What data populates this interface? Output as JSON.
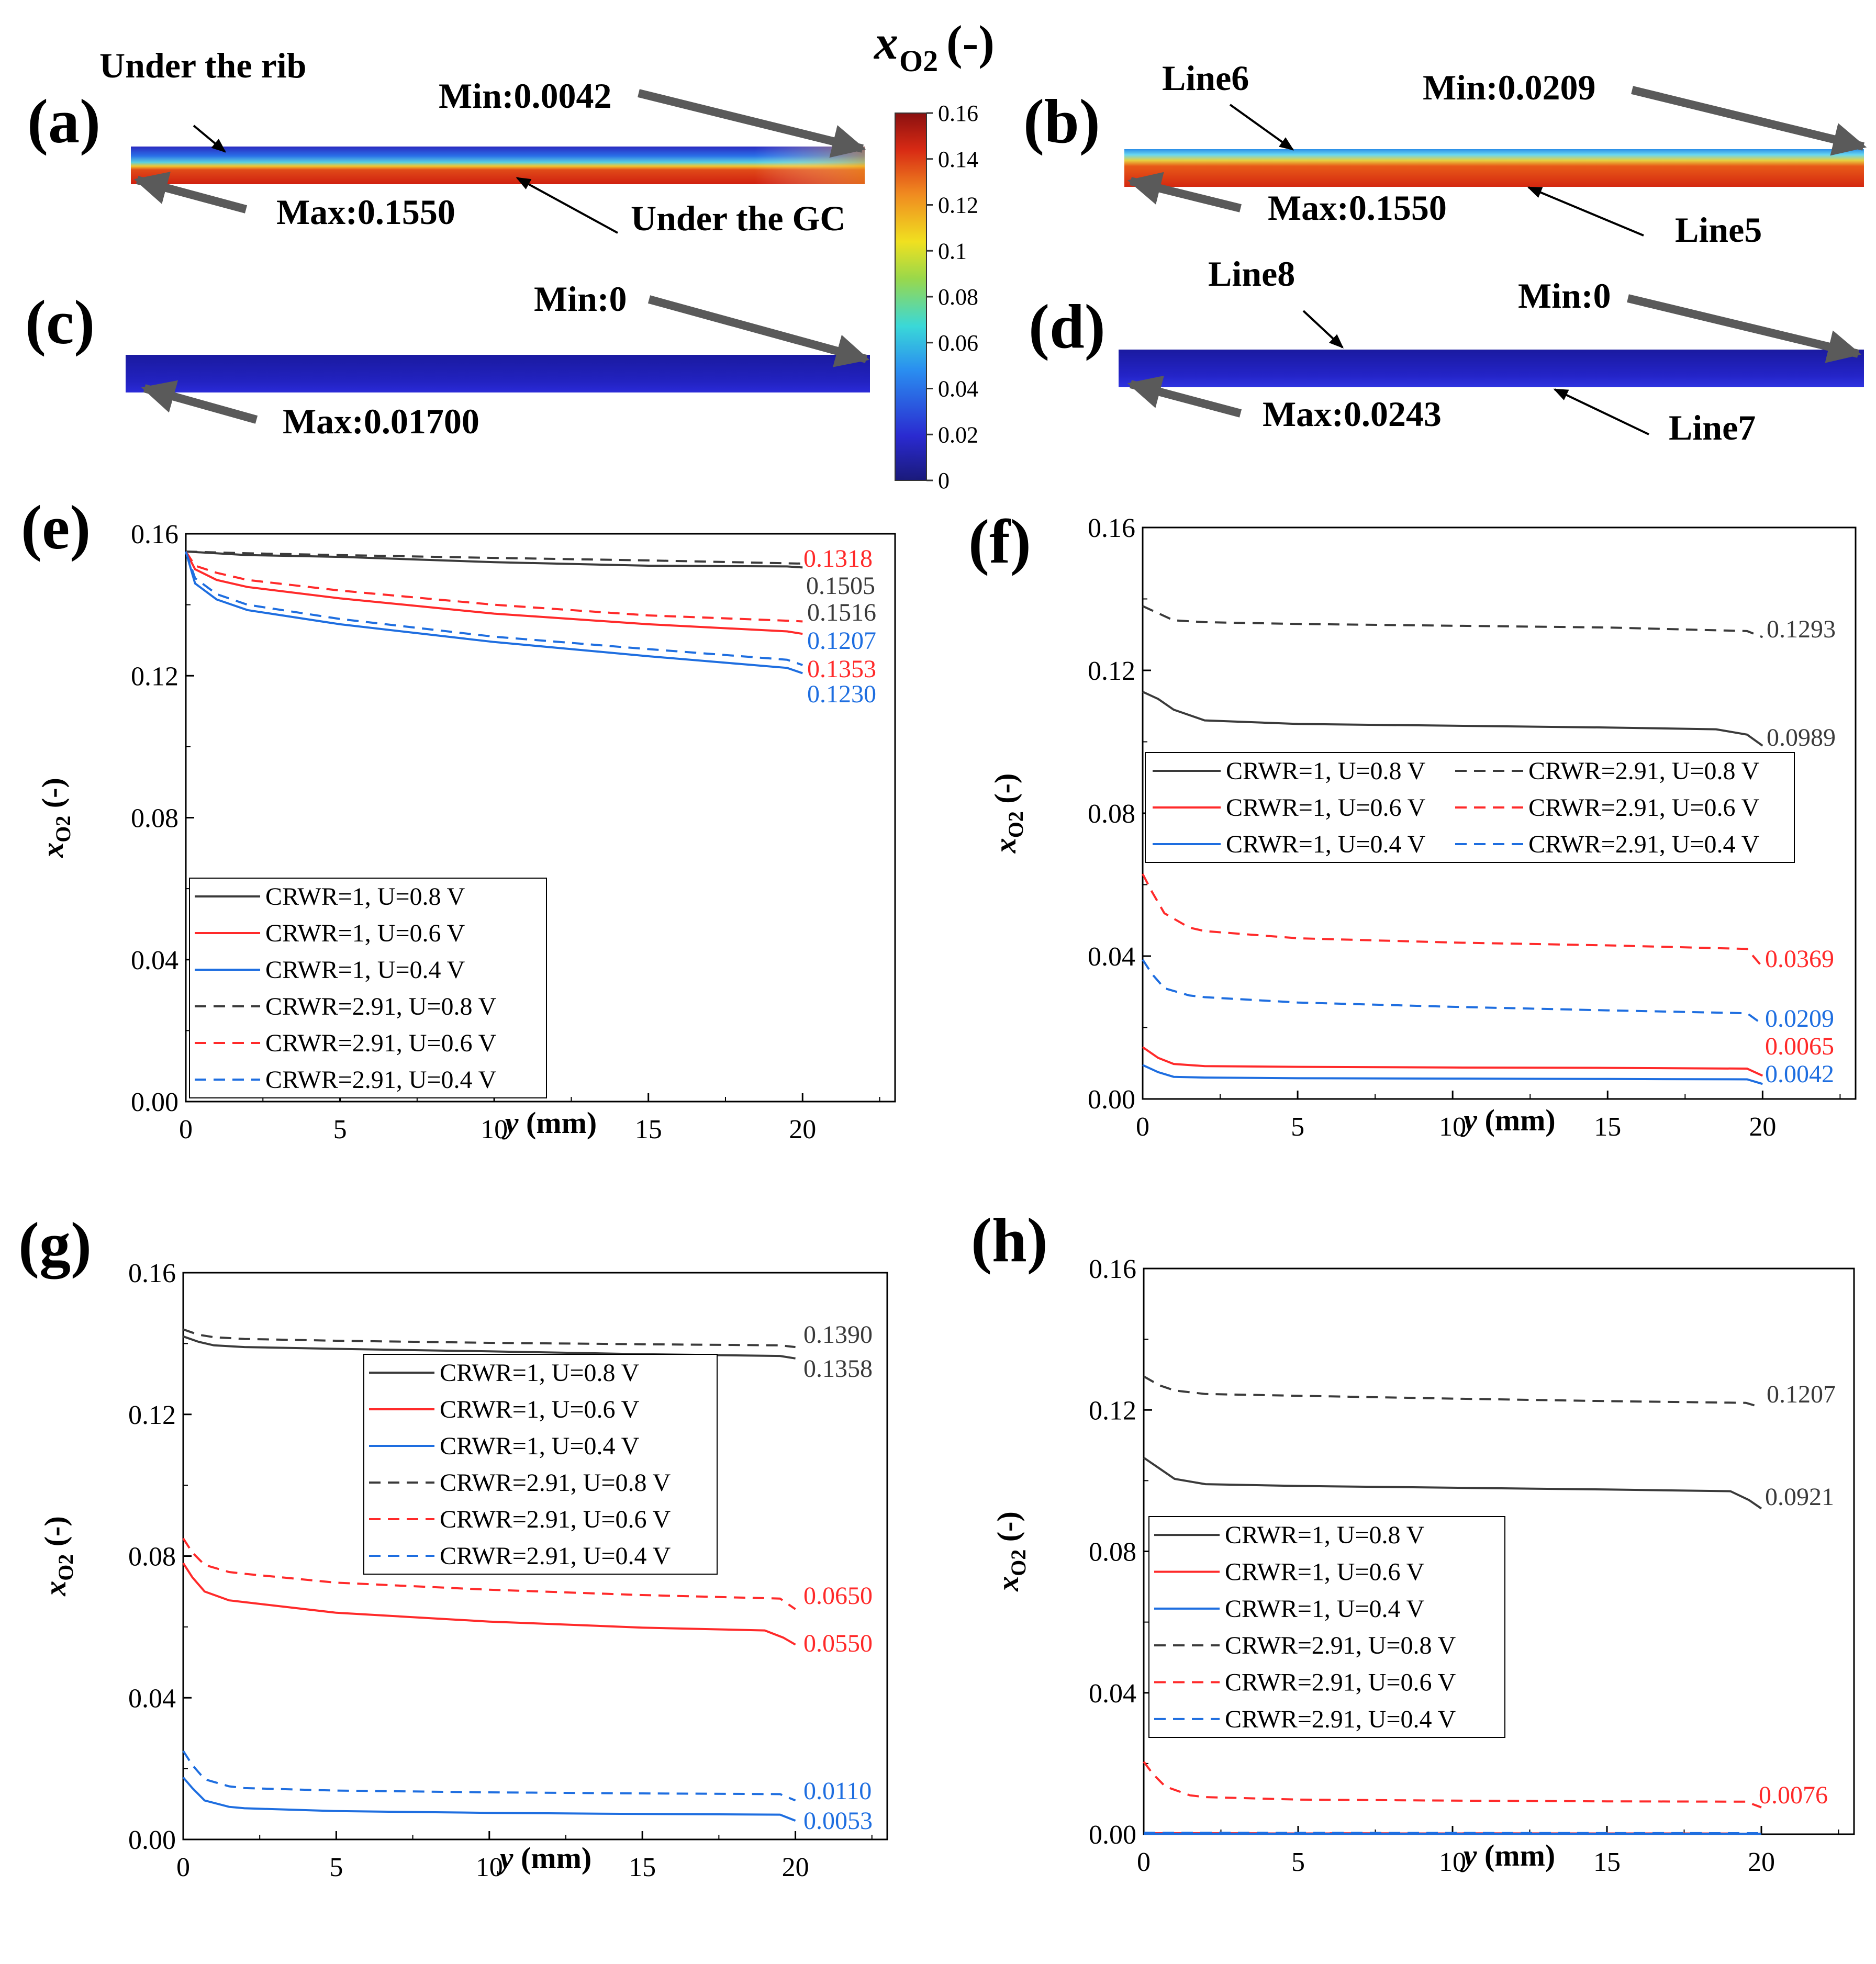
{
  "colorbar": {
    "title_main": "x",
    "title_sub": "O2",
    "title_suffix": "(-)",
    "ticks": [
      "0.16",
      "0.14",
      "0.12",
      "0.1",
      "0.08",
      "0.06",
      "0.04",
      "0.02",
      "0"
    ]
  },
  "contours": [
    {
      "id": "a",
      "label": "(a)",
      "texts": [
        "Under the rib",
        "Min:0.0042",
        "Max:0.1550",
        "Under the GC"
      ]
    },
    {
      "id": "b",
      "label": "(b)",
      "texts": [
        "Line6",
        "Min:0.0209",
        "Max:0.1550",
        "Line5"
      ]
    },
    {
      "id": "c",
      "label": "(c)",
      "texts": [
        "Min:0",
        "Max:0.01700"
      ]
    },
    {
      "id": "d",
      "label": "(d)",
      "texts": [
        "Line8",
        "Min:0",
        "Max:0.0243",
        "Line7"
      ]
    }
  ],
  "colors": {
    "black": "#3a3a3a",
    "red": "#ff2a2a",
    "blue": "#1e6ee0"
  },
  "chart_data": [
    {
      "panel": "(e)",
      "type": "line",
      "xlabel_var": "y",
      "xlabel_unit": " (mm)",
      "ylabel_var": "x",
      "ylabel_sub": "O2",
      "ylabel_unit": " (-)",
      "xlim": [
        0,
        23
      ],
      "ylim": [
        0,
        0.16
      ],
      "xticks": [
        "0",
        "5",
        "10",
        "15",
        "20"
      ],
      "yticks": [
        "0.00",
        "0.04",
        "0.08",
        "0.12",
        "0.16"
      ],
      "legend_position": "bottom-left",
      "legend_columns": 1,
      "legend": [
        "CRWR=1, U=0.8 V",
        "CRWR=1, U=0.6 V",
        "CRWR=1, U=0.4 V",
        "CRWR=2.91, U=0.8 V",
        "CRWR=2.91, U=0.6 V",
        "CRWR=2.91, U=0.4 V"
      ],
      "series": [
        {
          "name": "CRWR=1, U=0.8 V",
          "color": "black",
          "dash": false,
          "x": [
            0,
            2,
            5,
            10,
            15,
            19.5,
            20
          ],
          "y": [
            0.155,
            0.154,
            0.1535,
            0.152,
            0.151,
            0.1508,
            0.1505
          ],
          "end_label": "0.1505"
        },
        {
          "name": "CRWR=1, U=0.6 V",
          "color": "red",
          "dash": false,
          "x": [
            0,
            0.3,
            1,
            2,
            5,
            10,
            15,
            19.5,
            20
          ],
          "y": [
            0.155,
            0.15,
            0.147,
            0.145,
            0.1418,
            0.1375,
            0.1345,
            0.1325,
            0.1318
          ],
          "end_label": "0.1318"
        },
        {
          "name": "CRWR=1, U=0.4 V",
          "color": "blue",
          "dash": false,
          "x": [
            0,
            0.3,
            1,
            2,
            5,
            10,
            15,
            19.5,
            20
          ],
          "y": [
            0.155,
            0.146,
            0.1415,
            0.1385,
            0.1345,
            0.1295,
            0.1255,
            0.1222,
            0.1207
          ],
          "end_label": "0.1207"
        },
        {
          "name": "CRWR=2.91, U=0.8 V",
          "color": "black",
          "dash": true,
          "x": [
            0,
            2,
            5,
            10,
            15,
            20
          ],
          "y": [
            0.155,
            0.1545,
            0.154,
            0.1532,
            0.1525,
            0.1516
          ],
          "end_label": "0.1516"
        },
        {
          "name": "CRWR=2.91, U=0.6 V",
          "color": "red",
          "dash": true,
          "x": [
            0,
            0.3,
            1,
            2,
            5,
            10,
            15,
            19.5,
            20
          ],
          "y": [
            0.155,
            0.151,
            0.149,
            0.147,
            0.144,
            0.14,
            0.137,
            0.1355,
            0.1353
          ],
          "end_label": "0.1353"
        },
        {
          "name": "CRWR=2.91, U=0.4 V",
          "color": "blue",
          "dash": true,
          "x": [
            0,
            0.3,
            1,
            2,
            5,
            10,
            15,
            19.5,
            20
          ],
          "y": [
            0.155,
            0.1475,
            0.143,
            0.14,
            0.136,
            0.131,
            0.1275,
            0.1245,
            0.123
          ],
          "end_label": "0.1230"
        }
      ]
    },
    {
      "panel": "(f)",
      "type": "line",
      "xlabel_var": "y",
      "xlabel_unit": " (mm)",
      "ylabel_var": "x",
      "ylabel_sub": "O2",
      "ylabel_unit": " (-)",
      "xlim": [
        0,
        23
      ],
      "ylim": [
        0,
        0.16
      ],
      "xticks": [
        "0",
        "5",
        "10",
        "15",
        "20"
      ],
      "yticks": [
        "0.00",
        "0.04",
        "0.08",
        "0.12",
        "0.16"
      ],
      "legend_position": "middle-left",
      "legend_columns": 2,
      "legend": [
        "CRWR=1, U=0.8 V",
        "CRWR=1, U=0.6 V",
        "CRWR=1, U=0.4 V",
        "CRWR=2.91, U=0.8 V",
        "CRWR=2.91, U=0.6 V",
        "CRWR=2.91, U=0.4 V"
      ],
      "series": [
        {
          "name": "CRWR=1, U=0.8 V",
          "color": "black",
          "dash": false,
          "x": [
            0,
            0.5,
            1,
            2,
            5,
            10,
            15,
            18.5,
            19.5,
            20
          ],
          "y": [
            0.114,
            0.112,
            0.109,
            0.106,
            0.105,
            0.1045,
            0.104,
            0.1035,
            0.102,
            0.0989
          ],
          "end_label": "0.0989"
        },
        {
          "name": "CRWR=1, U=0.6 V",
          "color": "red",
          "dash": false,
          "x": [
            0,
            0.5,
            1,
            2,
            5,
            10,
            15,
            19.5,
            20
          ],
          "y": [
            0.0145,
            0.0115,
            0.0098,
            0.0092,
            0.009,
            0.0088,
            0.0087,
            0.0085,
            0.0065
          ],
          "end_label": "0.0065"
        },
        {
          "name": "CRWR=1, U=0.4 V",
          "color": "blue",
          "dash": false,
          "x": [
            0,
            0.5,
            1,
            2,
            5,
            10,
            15,
            19.5,
            20
          ],
          "y": [
            0.0095,
            0.0075,
            0.0062,
            0.006,
            0.0058,
            0.0057,
            0.0056,
            0.0055,
            0.0042
          ],
          "end_label": "0.0042"
        },
        {
          "name": "CRWR=2.91, U=0.8 V",
          "color": "black",
          "dash": true,
          "x": [
            0,
            0.5,
            1,
            2,
            5,
            10,
            15,
            19.5,
            20
          ],
          "y": [
            0.138,
            0.136,
            0.134,
            0.1335,
            0.133,
            0.1325,
            0.132,
            0.131,
            0.1293
          ],
          "end_label": "0.1293"
        },
        {
          "name": "CRWR=2.91, U=0.6 V",
          "color": "red",
          "dash": true,
          "x": [
            0,
            0.3,
            0.7,
            1.5,
            2,
            5,
            10,
            15,
            19.5,
            20
          ],
          "y": [
            0.063,
            0.058,
            0.052,
            0.048,
            0.047,
            0.045,
            0.0438,
            0.043,
            0.042,
            0.0369
          ],
          "end_label": "0.0369"
        },
        {
          "name": "CRWR=2.91, U=0.4 V",
          "color": "blue",
          "dash": true,
          "x": [
            0,
            0.3,
            0.7,
            1.5,
            2,
            5,
            10,
            15,
            19.5,
            20
          ],
          "y": [
            0.039,
            0.035,
            0.031,
            0.029,
            0.0285,
            0.027,
            0.0258,
            0.0248,
            0.024,
            0.0209
          ],
          "end_label": "0.0209"
        }
      ]
    },
    {
      "panel": "(g)",
      "type": "line",
      "xlabel_var": "y",
      "xlabel_unit": " (mm)",
      "ylabel_var": "x",
      "ylabel_sub": "O2",
      "ylabel_unit": " (-)",
      "xlim": [
        0,
        23
      ],
      "ylim": [
        0,
        0.16
      ],
      "xticks": [
        "0",
        "5",
        "10",
        "15",
        "20"
      ],
      "yticks": [
        "0.00",
        "0.04",
        "0.08",
        "0.12",
        "0.16"
      ],
      "legend_position": "top-center",
      "legend_columns": 1,
      "legend": [
        "CRWR=1, U=0.8 V",
        "CRWR=1, U=0.6 V",
        "CRWR=1, U=0.4 V",
        "CRWR=2.91, U=0.8 V",
        "CRWR=2.91, U=0.6 V",
        "CRWR=2.91, U=0.4 V"
      ],
      "series": [
        {
          "name": "CRWR=1, U=0.8 V",
          "color": "black",
          "dash": false,
          "x": [
            0,
            0.5,
            1,
            2,
            5,
            10,
            15,
            19.5,
            20
          ],
          "y": [
            0.142,
            0.1405,
            0.1395,
            0.139,
            0.1385,
            0.1378,
            0.137,
            0.1365,
            0.1358
          ],
          "end_label": "0.1358"
        },
        {
          "name": "CRWR=1, U=0.6 V",
          "color": "red",
          "dash": false,
          "x": [
            0,
            0.3,
            0.7,
            1.5,
            2,
            5,
            10,
            15,
            19,
            19.6,
            20
          ],
          "y": [
            0.078,
            0.074,
            0.07,
            0.0675,
            0.067,
            0.064,
            0.0615,
            0.0598,
            0.059,
            0.057,
            0.055
          ],
          "end_label": "0.0550"
        },
        {
          "name": "CRWR=1, U=0.4 V",
          "color": "blue",
          "dash": false,
          "x": [
            0,
            0.3,
            0.7,
            1.5,
            2,
            5,
            10,
            15,
            19.5,
            20
          ],
          "y": [
            0.0175,
            0.0145,
            0.011,
            0.0092,
            0.0088,
            0.008,
            0.0075,
            0.0072,
            0.007,
            0.0053
          ],
          "end_label": "0.0053"
        },
        {
          "name": "CRWR=2.91, U=0.8 V",
          "color": "black",
          "dash": true,
          "x": [
            0,
            0.5,
            1,
            2,
            5,
            10,
            15,
            19.5,
            20
          ],
          "y": [
            0.144,
            0.1425,
            0.1418,
            0.1413,
            0.1408,
            0.1402,
            0.1398,
            0.1395,
            0.139
          ],
          "end_label": "0.1390"
        },
        {
          "name": "CRWR=2.91, U=0.6 V",
          "color": "red",
          "dash": true,
          "x": [
            0,
            0.3,
            0.7,
            1.5,
            2,
            5,
            10,
            15,
            19.5,
            20
          ],
          "y": [
            0.085,
            0.081,
            0.0775,
            0.0755,
            0.075,
            0.0725,
            0.0705,
            0.069,
            0.068,
            0.065
          ],
          "end_label": "0.0650"
        },
        {
          "name": "CRWR=2.91, U=0.4 V",
          "color": "blue",
          "dash": true,
          "x": [
            0,
            0.3,
            0.7,
            1.5,
            2,
            5,
            10,
            15,
            19.5,
            20
          ],
          "y": [
            0.025,
            0.021,
            0.017,
            0.015,
            0.0145,
            0.0138,
            0.0133,
            0.013,
            0.0128,
            0.011
          ],
          "end_label": "0.0110"
        }
      ]
    },
    {
      "panel": "(h)",
      "type": "line",
      "xlabel_var": "y",
      "xlabel_unit": " (mm)",
      "ylabel_var": "x",
      "ylabel_sub": "O2",
      "ylabel_unit": " (-)",
      "xlim": [
        0,
        23
      ],
      "ylim": [
        0,
        0.16
      ],
      "xticks": [
        "0",
        "5",
        "10",
        "15",
        "20"
      ],
      "yticks": [
        "0.00",
        "0.04",
        "0.08",
        "0.12",
        "0.16"
      ],
      "legend_position": "bottom-left",
      "legend_columns": 1,
      "legend": [
        "CRWR=1, U=0.8 V",
        "CRWR=1, U=0.6 V",
        "CRWR=1, U=0.4 V",
        "CRWR=2.91, U=0.8 V",
        "CRWR=2.91, U=0.6 V",
        "CRWR=2.91, U=0.4 V"
      ],
      "series": [
        {
          "name": "CRWR=1, U=0.8 V",
          "color": "black",
          "dash": false,
          "x": [
            0,
            0.5,
            1,
            2,
            5,
            10,
            15,
            19,
            19.6,
            20
          ],
          "y": [
            0.1065,
            0.1035,
            0.1005,
            0.099,
            0.0985,
            0.098,
            0.0975,
            0.097,
            0.0945,
            0.0921
          ],
          "end_label": "0.0921"
        },
        {
          "name": "CRWR=1, U=0.6 V",
          "color": "red",
          "dash": false,
          "x": [
            0,
            20
          ],
          "y": [
            0.0003,
            0.0002
          ],
          "end_label": ""
        },
        {
          "name": "CRWR=1, U=0.4 V",
          "color": "blue",
          "dash": false,
          "x": [
            0,
            20
          ],
          "y": [
            0.0001,
            0.0001
          ],
          "end_label": ""
        },
        {
          "name": "CRWR=2.91, U=0.8 V",
          "color": "black",
          "dash": true,
          "x": [
            0,
            0.5,
            1,
            2,
            5,
            10,
            15,
            19.5,
            20
          ],
          "y": [
            0.1295,
            0.127,
            0.1255,
            0.1245,
            0.124,
            0.1232,
            0.1225,
            0.122,
            0.1207
          ],
          "end_label": "0.1207"
        },
        {
          "name": "CRWR=2.91, U=0.6 V",
          "color": "red",
          "dash": true,
          "x": [
            0,
            0.3,
            0.7,
            1.5,
            2,
            5,
            10,
            15,
            19.5,
            20
          ],
          "y": [
            0.0205,
            0.017,
            0.0135,
            0.011,
            0.0105,
            0.0098,
            0.0095,
            0.0093,
            0.0092,
            0.0076
          ],
          "end_label": "0.0076"
        },
        {
          "name": "CRWR=2.91, U=0.4 V",
          "color": "blue",
          "dash": true,
          "x": [
            0,
            20
          ],
          "y": [
            0.0004,
            0.0003
          ],
          "end_label": ""
        }
      ]
    }
  ]
}
